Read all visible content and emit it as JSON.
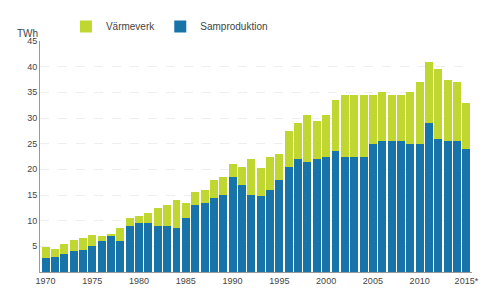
{
  "chart_data": {
    "type": "bar",
    "stacked": true,
    "categories": [
      "1970",
      null,
      null,
      null,
      null,
      "1975",
      null,
      null,
      null,
      null,
      "1980",
      null,
      null,
      null,
      null,
      "1985",
      null,
      null,
      null,
      null,
      "1990",
      null,
      null,
      null,
      null,
      "1995",
      null,
      null,
      null,
      null,
      "2000",
      null,
      null,
      null,
      null,
      "2005",
      null,
      null,
      null,
      null,
      "2010",
      null,
      null,
      null,
      null,
      "2015*"
    ],
    "series": [
      {
        "name": "Samproduktion",
        "color": "#1873a8",
        "values": [
          2.8,
          3.0,
          3.5,
          4.0,
          4.2,
          5.0,
          6.0,
          7.0,
          6.0,
          9.0,
          9.5,
          9.5,
          9.0,
          9.0,
          8.5,
          10.5,
          13.0,
          13.5,
          14.5,
          15.0,
          18.5,
          17.0,
          15.0,
          14.8,
          16.0,
          18.0,
          20.5,
          22.0,
          21.5,
          22.0,
          22.5,
          23.5,
          22.5,
          22.5,
          22.5,
          25.0,
          25.5,
          25.5,
          25.5,
          25.0,
          25.0,
          29.0,
          26.0,
          25.5,
          25.5,
          24.0
        ]
      },
      {
        "name": "Värmeverk",
        "color": "#bfd730",
        "values": [
          2.0,
          1.5,
          2.0,
          2.2,
          2.5,
          2.3,
          1.0,
          0.5,
          2.5,
          1.5,
          1.5,
          2.0,
          3.5,
          4.0,
          5.5,
          3.0,
          2.5,
          2.5,
          3.5,
          3.5,
          2.5,
          3.5,
          7.0,
          5.5,
          6.5,
          5.0,
          7.0,
          7.0,
          9.0,
          7.5,
          8.0,
          10.0,
          12.0,
          12.0,
          12.0,
          9.5,
          9.5,
          9.0,
          9.0,
          10.0,
          12.0,
          12.0,
          13.5,
          12.0,
          11.5,
          9.0
        ]
      }
    ],
    "ylabel": "TWh",
    "ylim": [
      0,
      45
    ],
    "yticks": [
      5,
      10,
      15,
      20,
      25,
      30,
      35,
      40,
      45
    ],
    "grid": true,
    "legend": "top"
  }
}
